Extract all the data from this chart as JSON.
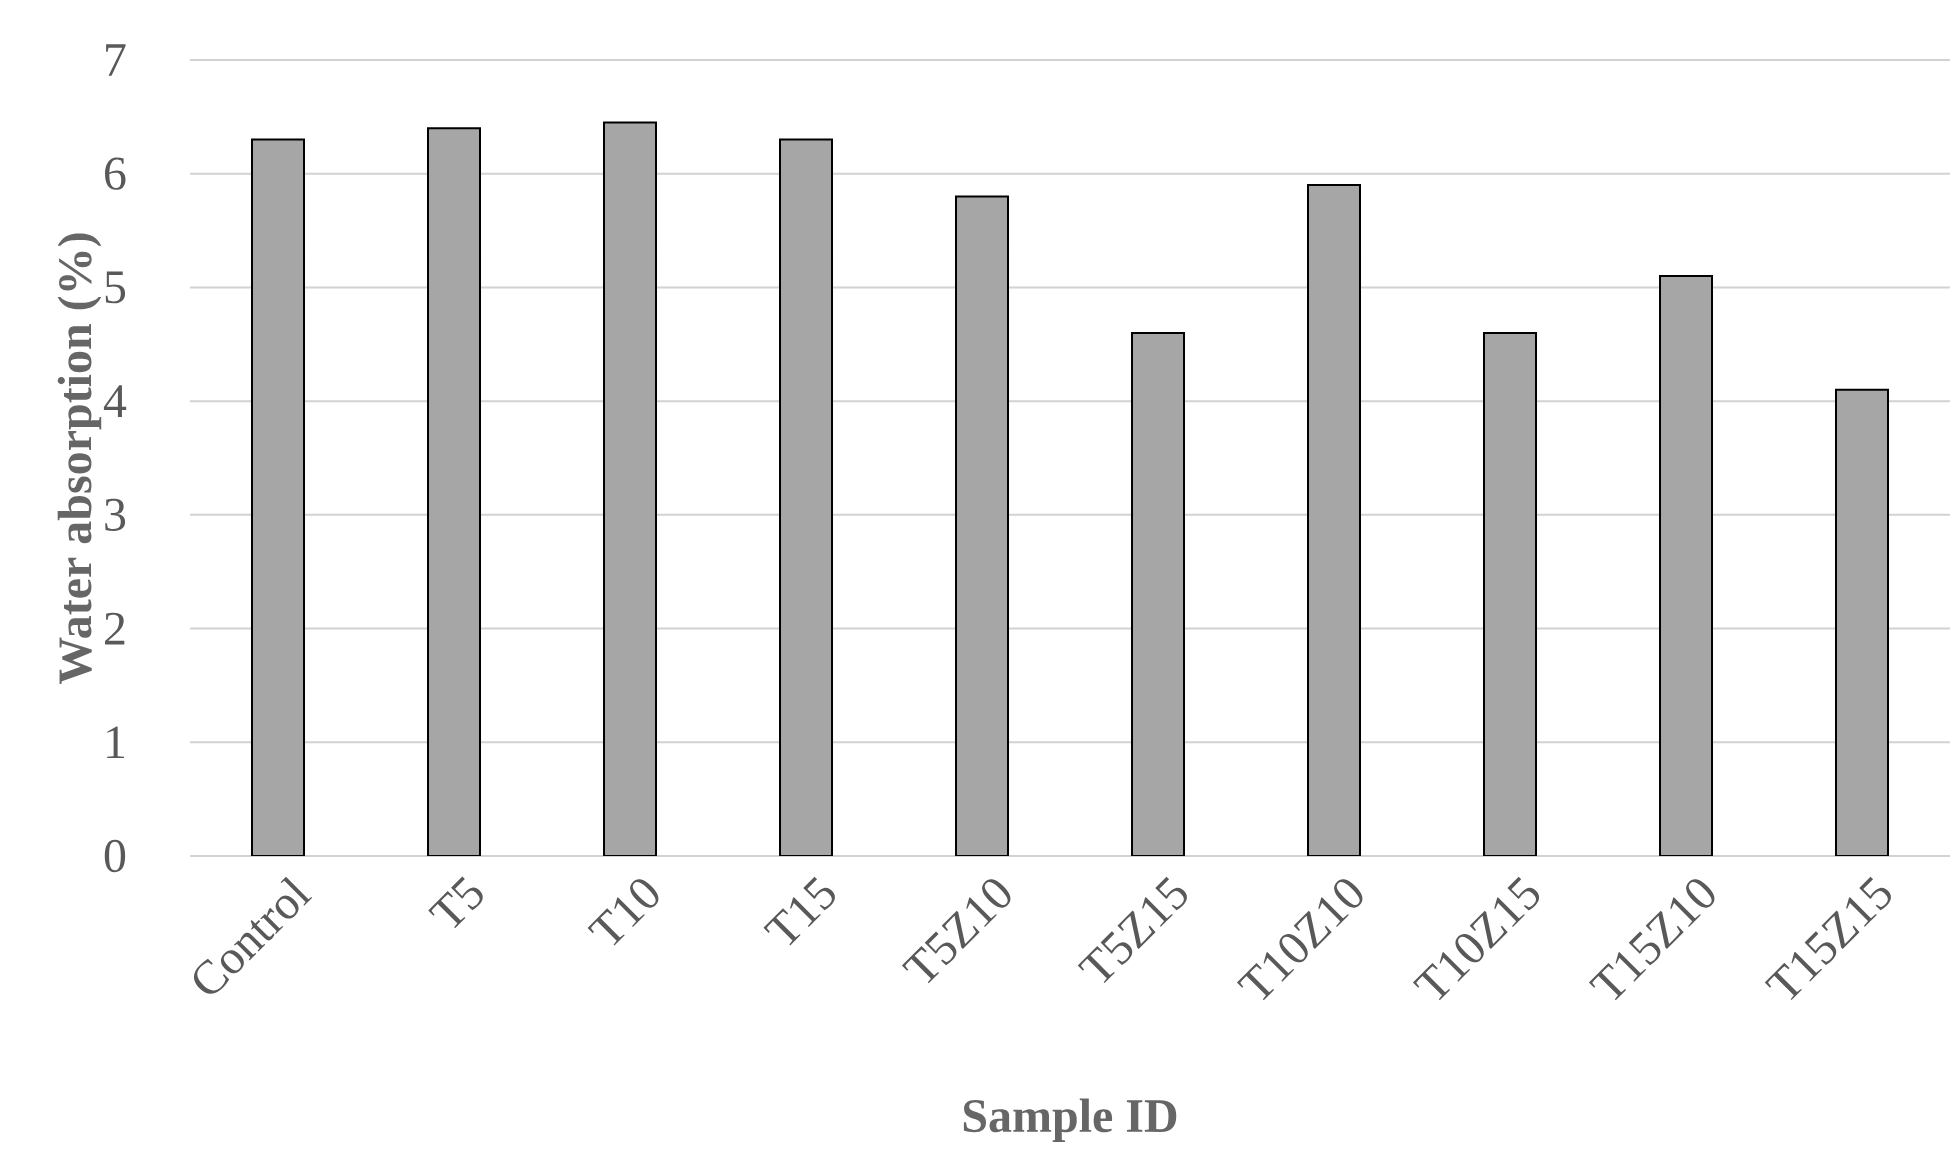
{
  "chart_data": {
    "type": "bar",
    "xlabel": "Sample ID",
    "ylabel": "Water absorption (%)",
    "categories": [
      "Control",
      "T5",
      "T10",
      "T15",
      "T5Z10",
      "T5Z15",
      "T10Z10",
      "T10Z15",
      "T15Z10",
      "T15Z15"
    ],
    "values": [
      6.3,
      6.4,
      6.45,
      6.3,
      5.8,
      4.6,
      5.9,
      4.6,
      5.1,
      4.1
    ],
    "color": "#a6a6a6",
    "ylim": [
      0,
      7
    ],
    "yticks": [
      0,
      1,
      2,
      3,
      4,
      5,
      6,
      7
    ],
    "grid": "y"
  }
}
